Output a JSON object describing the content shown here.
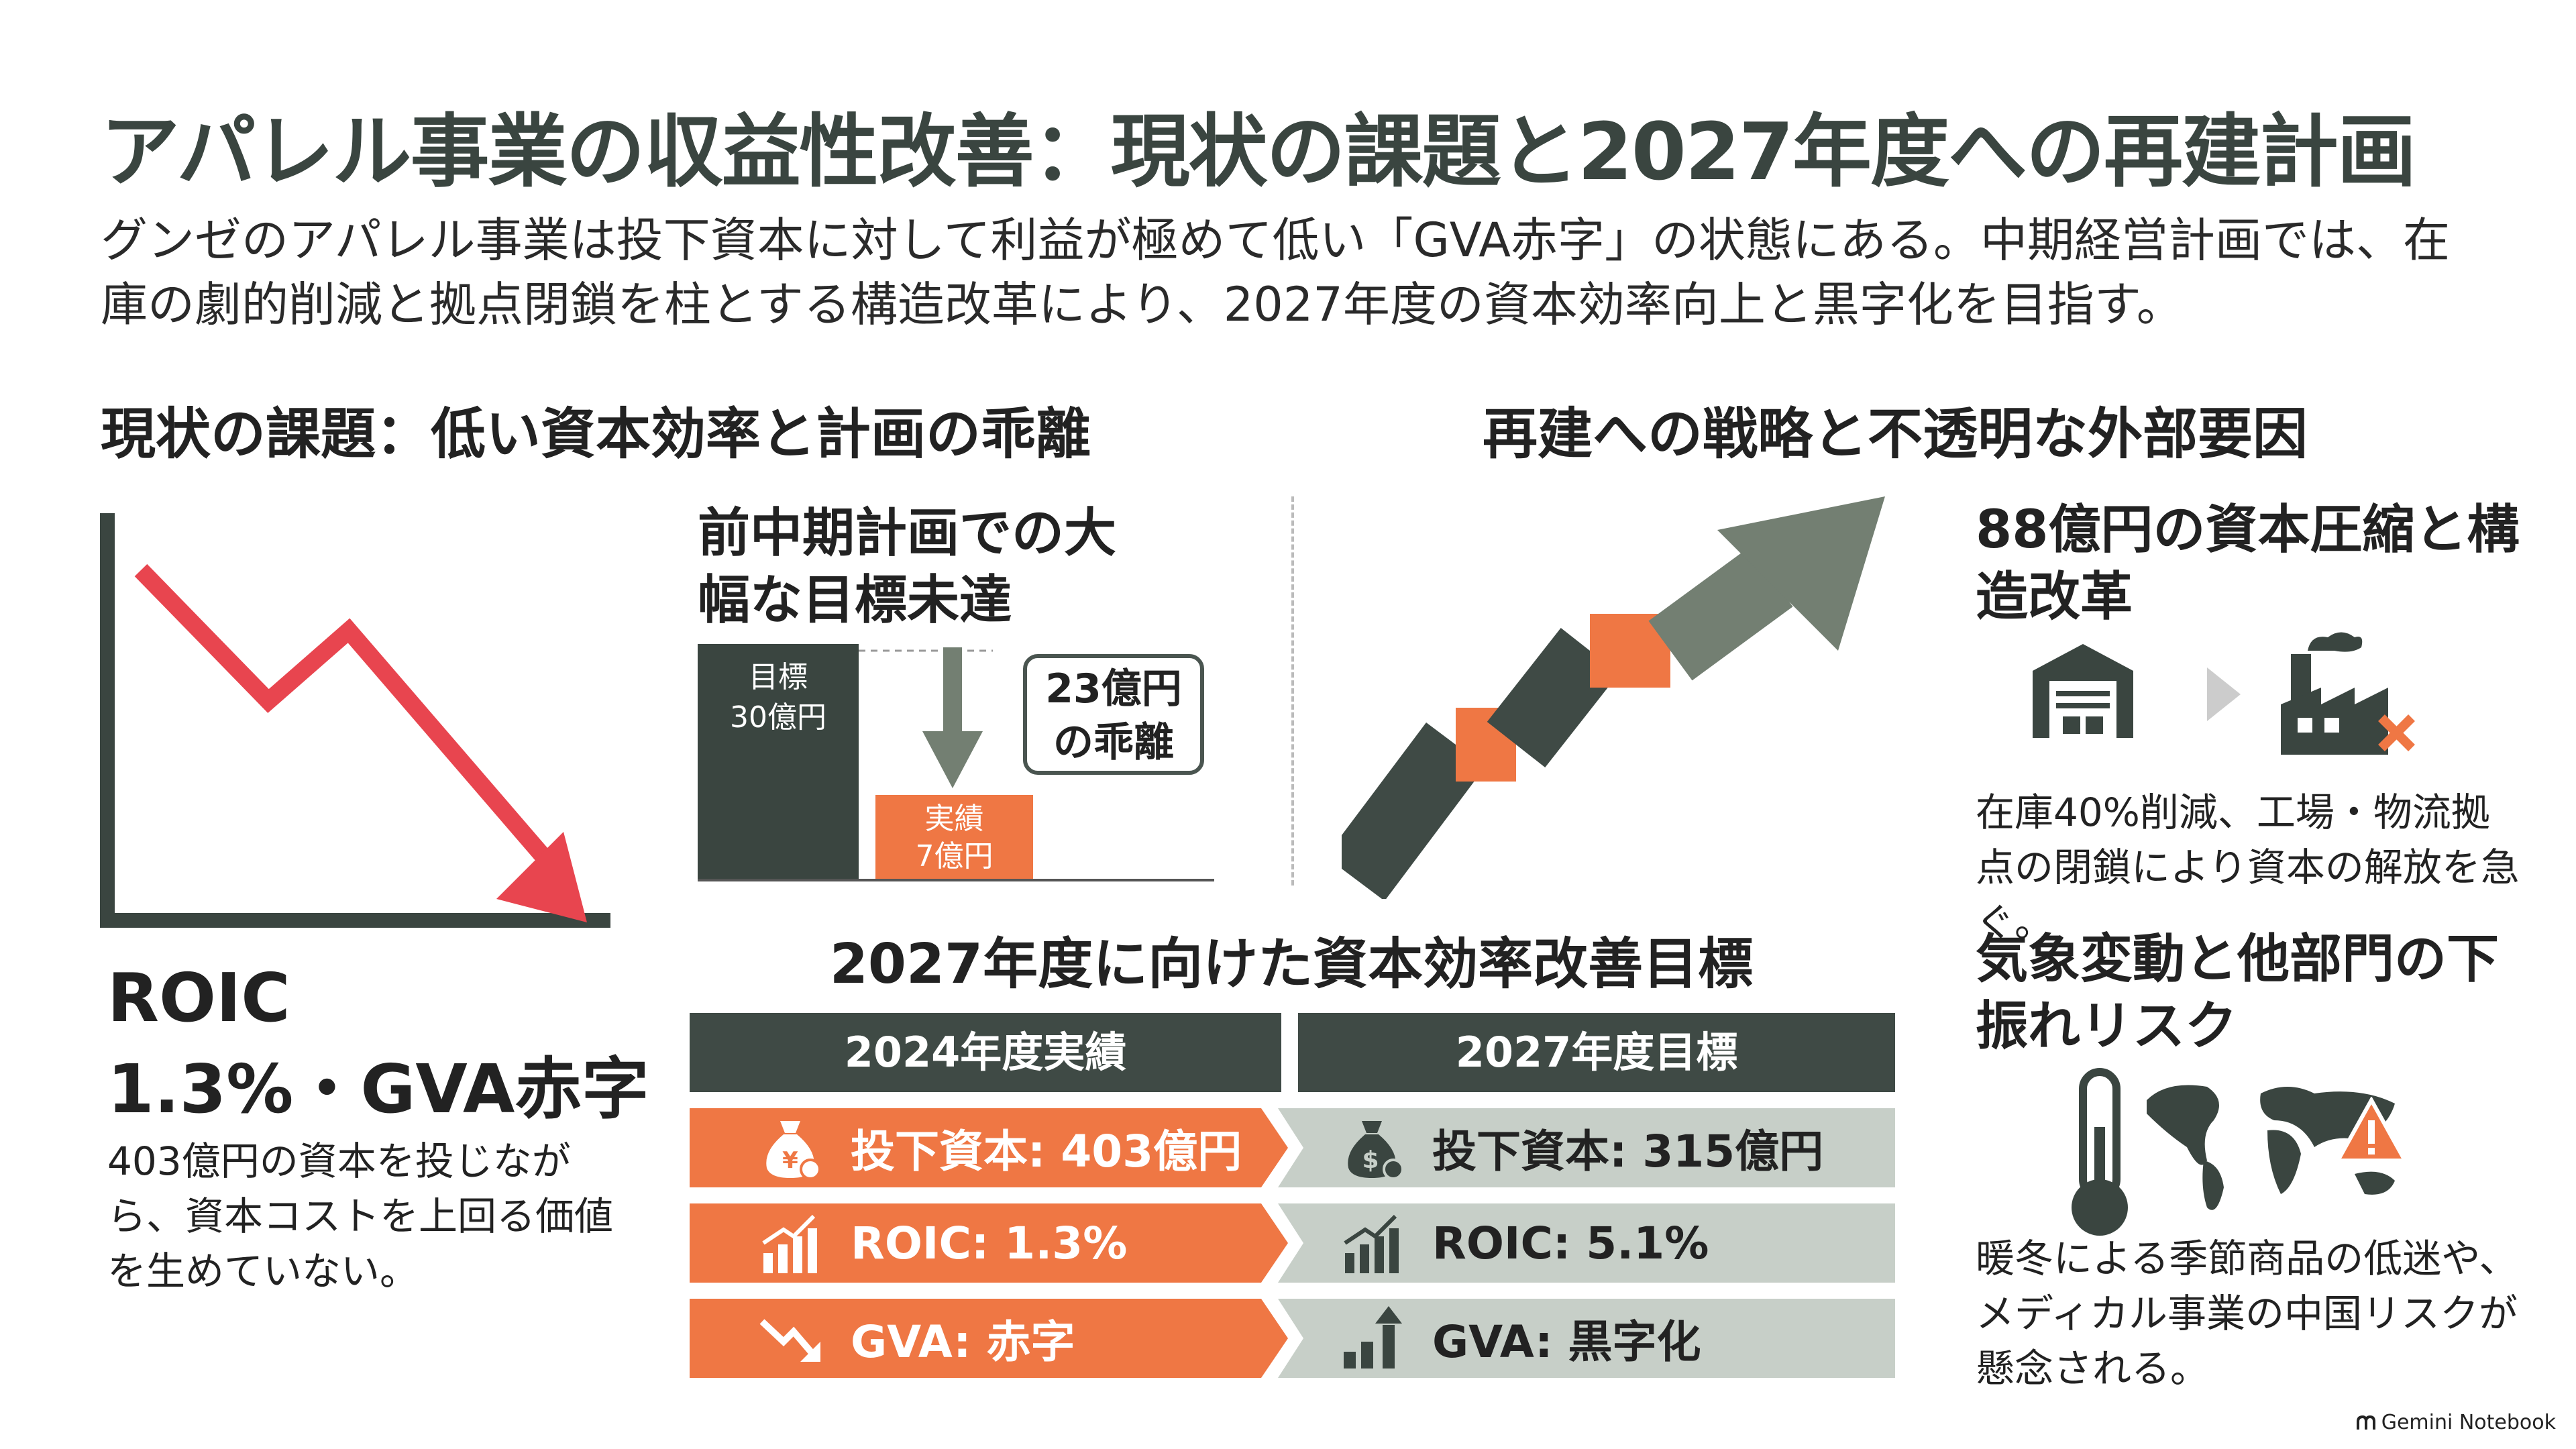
{
  "title": "アパレル事業の収益性改善：現状の課題と2027年度への再建計画",
  "subtitle": "グンゼのアパレル事業は投下資本に対して利益が極めて低い「GVA赤字」の状態にある。中期経営計画では、在庫の劇的削減と拠点閉鎖を柱とする構造改革により、2027年度の資本効率向上と黒字化を目指す。",
  "left_section": {
    "heading": "現状の課題：低い資本効率と計画の乖離",
    "kpi_line1": "ROIC",
    "kpi_line2": "1.3%・GVA赤字",
    "kpi_body": "403億円の資本を投じながら、資本コストを上回る価値を生めていない。",
    "gap": {
      "heading": "前中期計画での大幅な目標未達",
      "target_label": "目標",
      "target_value": "30億円",
      "actual_label": "実績",
      "actual_value": "7億円",
      "gap_text": "23億円の乖離"
    }
  },
  "right_section": {
    "heading": "再建への戦略と不透明な外部要因",
    "item1": {
      "heading": "88億円の資本圧縮と構造改革",
      "body": "在庫40%削減、工場・物流拠点の閉鎖により資本の解放を急ぐ。"
    },
    "item2": {
      "heading": "気象変動と他部門の下振れリスク",
      "body": "暖冬による季節商品の低迷や、メディカル事業の中国リスクが懸念される。"
    }
  },
  "table": {
    "title": "2027年度に向けた資本効率改善目標",
    "col_current": "2024年度実績",
    "col_target": "2027年度目標",
    "rows": [
      {
        "current": "投下資本: 403億円",
        "target": "投下資本: 315億円",
        "current_icon": "yen-moneybag-icon",
        "target_icon": "dollar-moneybag-icon"
      },
      {
        "current": "ROIC: 1.3%",
        "target": "ROIC: 5.1%",
        "current_icon": "bar-growth-icon",
        "target_icon": "bar-growth-icon"
      },
      {
        "current": "GVA: 赤字",
        "target": "GVA: 黒字化",
        "current_icon": "trend-down-icon",
        "target_icon": "bar-up-arrow-icon"
      }
    ]
  },
  "footer": "Gemini Notebook",
  "colors": {
    "dark": "#3a4540",
    "orange": "#ef7744",
    "red": "#e8454f",
    "sage": "#737f72",
    "light_sage": "#c7cfc8"
  }
}
